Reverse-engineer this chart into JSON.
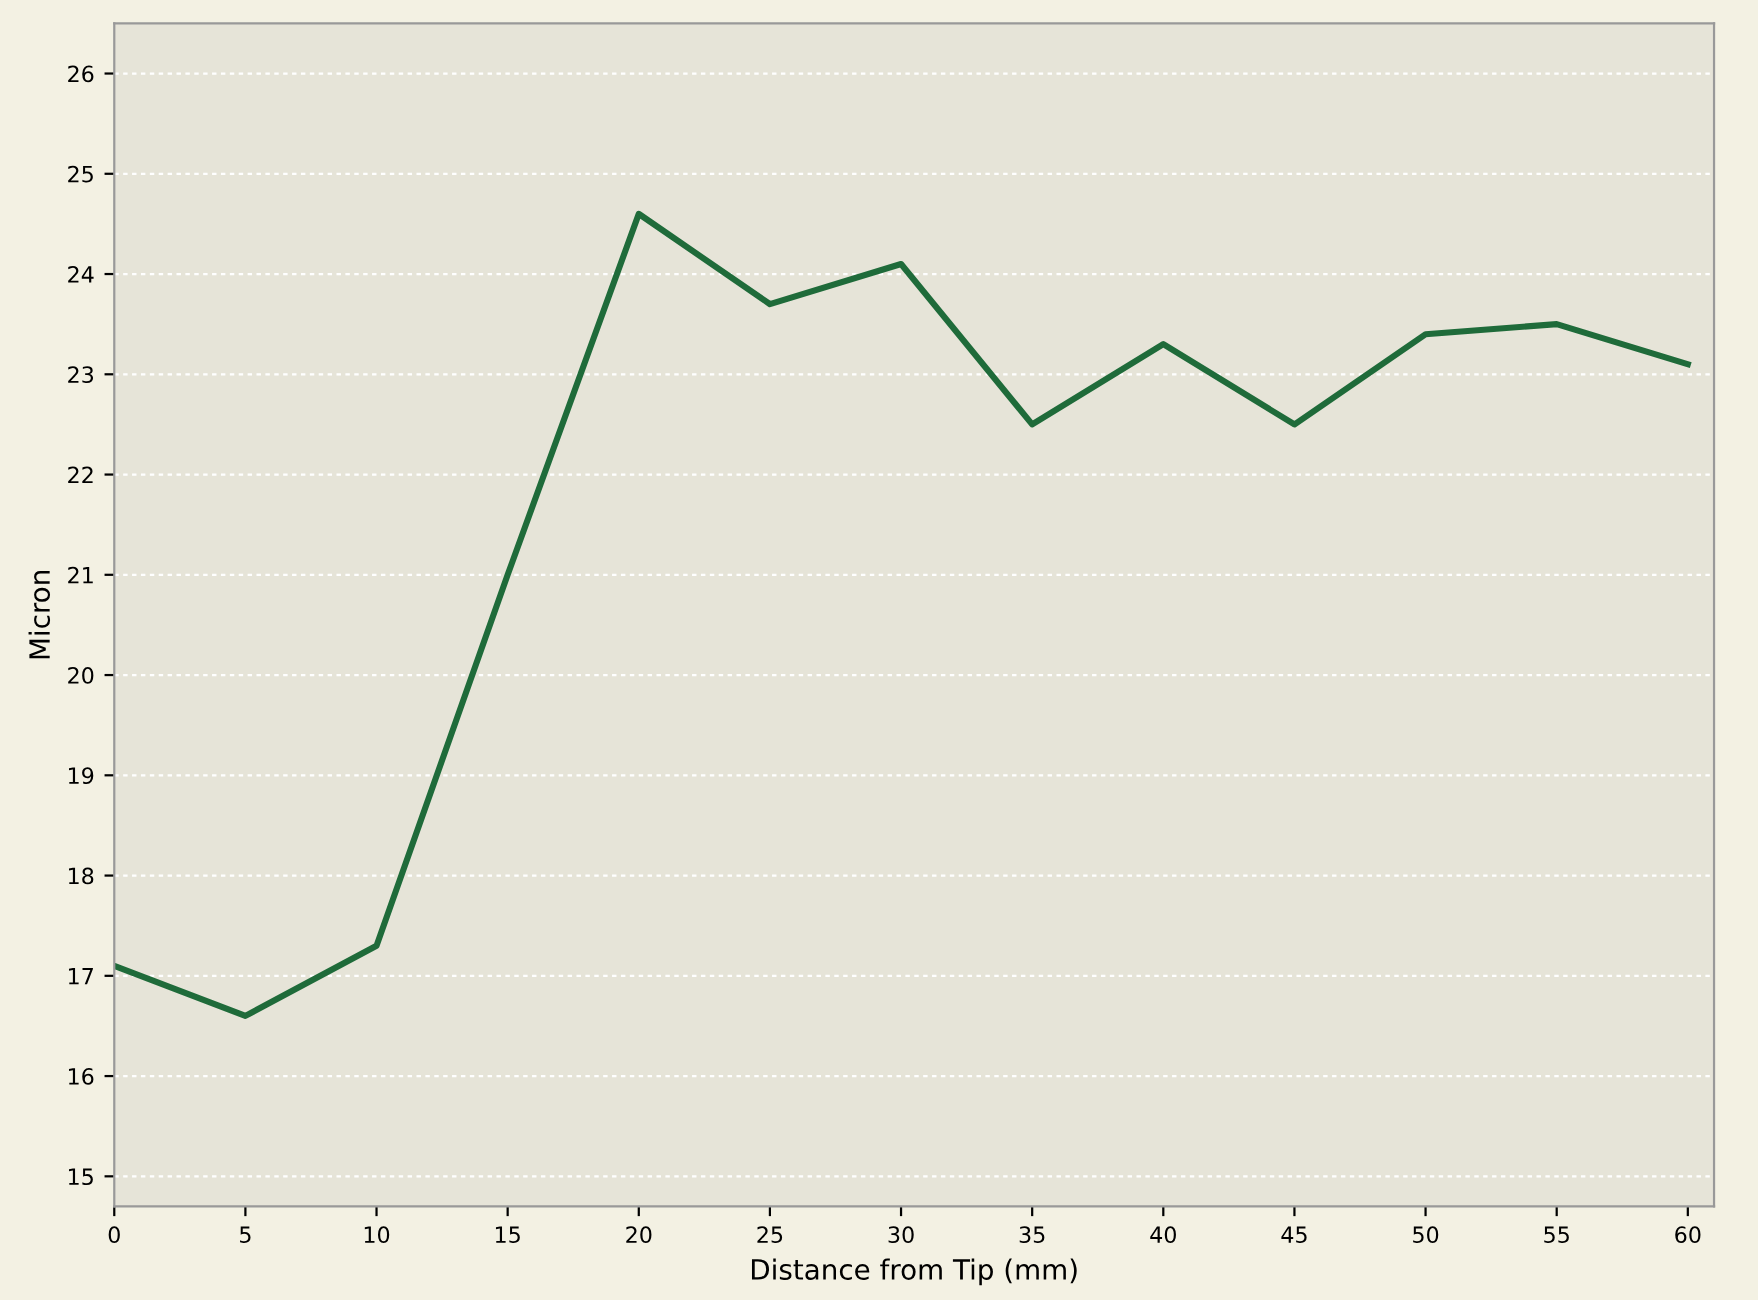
{
  "chart_data": {
    "type": "line",
    "xlabel": "Distance from Tip (mm)",
    "ylabel": "Micron",
    "x": [
      0,
      5,
      10,
      15,
      20,
      25,
      30,
      35,
      40,
      45,
      50,
      55,
      60
    ],
    "series": [
      {
        "color": "#1f6b3a",
        "values": [
          17.1,
          16.6,
          17.3,
          21.0,
          24.6,
          23.7,
          24.1,
          22.5,
          23.3,
          22.5,
          23.4,
          23.5,
          23.1
        ]
      }
    ],
    "xlim": [
      0,
      61
    ],
    "xticks": [
      0,
      5,
      10,
      15,
      20,
      25,
      30,
      35,
      40,
      45,
      50,
      55,
      60
    ],
    "ylim": [
      14.7,
      26.5
    ],
    "yticks": [
      15,
      16,
      17,
      18,
      19,
      20,
      21,
      22,
      23,
      24,
      25,
      26
    ],
    "grid": "y",
    "marker": "none",
    "line_style": "solid"
  }
}
